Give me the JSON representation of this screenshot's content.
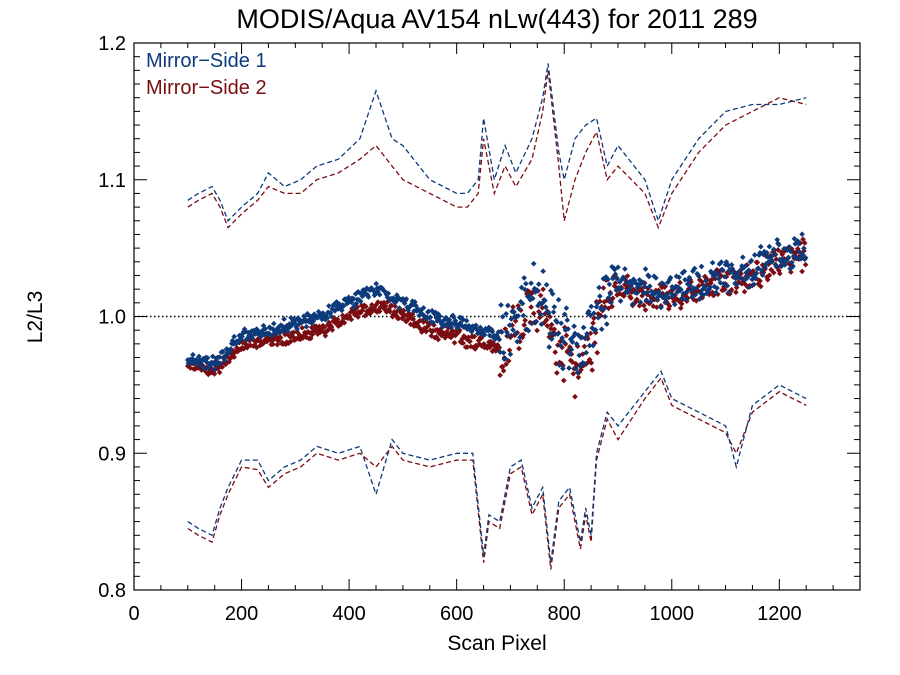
{
  "chart_data": {
    "type": "scatter",
    "title": "MODIS/Aqua AV154 nLw(443) for 2011 289",
    "xlabel": "Scan Pixel",
    "ylabel": "L2/L3",
    "xlim": [
      0,
      1350
    ],
    "ylim": [
      0.8,
      1.2
    ],
    "x_ticks": [
      0,
      200,
      400,
      600,
      800,
      1000,
      1200
    ],
    "y_ticks": [
      0.8,
      0.9,
      1.0,
      1.1,
      1.2
    ],
    "x_tick_labels": [
      "0",
      "200",
      "400",
      "600",
      "800",
      "1000",
      "1200"
    ],
    "y_tick_labels": [
      "0.8",
      "0.9",
      "1.0",
      "1.1",
      "1.2"
    ],
    "reference_line": {
      "y": 1.0,
      "style": "dotted",
      "color": "#000000"
    },
    "legend": {
      "placement": "top-left"
    },
    "series": [
      {
        "name": "Mirror−Side 1",
        "color": "#0d3a7a",
        "mean": {
          "x": [
            100,
            150,
            200,
            250,
            300,
            350,
            400,
            430,
            460,
            500,
            550,
            600,
            650,
            680,
            700,
            730,
            760,
            780,
            800,
            820,
            840,
            860,
            880,
            900,
            950,
            1000,
            1050,
            1100,
            1150,
            1200,
            1250
          ],
          "y": [
            0.97,
            0.965,
            0.985,
            0.99,
            0.995,
            1.0,
            1.01,
            1.016,
            1.02,
            1.01,
            1.0,
            0.995,
            0.99,
            0.985,
            0.99,
            1.01,
            1.02,
            0.99,
            0.985,
            0.975,
            0.98,
            1.0,
            1.02,
            1.025,
            1.02,
            1.02,
            1.025,
            1.03,
            1.035,
            1.045,
            1.05
          ]
        },
        "upper": {
          "x": [
            100,
            120,
            145,
            160,
            175,
            200,
            230,
            250,
            280,
            310,
            340,
            380,
            420,
            450,
            480,
            500,
            550,
            600,
            620,
            640,
            650,
            670,
            690,
            710,
            740,
            760,
            770,
            790,
            800,
            820,
            840,
            860,
            880,
            900,
            950,
            975,
            1000,
            1050,
            1100,
            1150,
            1200,
            1250
          ],
          "y": [
            1.085,
            1.09,
            1.095,
            1.085,
            1.07,
            1.08,
            1.09,
            1.105,
            1.095,
            1.1,
            1.11,
            1.115,
            1.13,
            1.165,
            1.13,
            1.125,
            1.1,
            1.09,
            1.09,
            1.1,
            1.145,
            1.1,
            1.125,
            1.105,
            1.13,
            1.16,
            1.185,
            1.12,
            1.1,
            1.13,
            1.14,
            1.145,
            1.11,
            1.125,
            1.1,
            1.07,
            1.1,
            1.13,
            1.15,
            1.155,
            1.155,
            1.16
          ]
        },
        "lower": {
          "x": [
            100,
            120,
            145,
            160,
            175,
            200,
            230,
            250,
            280,
            310,
            340,
            380,
            420,
            450,
            480,
            500,
            550,
            600,
            630,
            650,
            660,
            680,
            700,
            720,
            740,
            760,
            775,
            790,
            810,
            830,
            840,
            850,
            860,
            880,
            900,
            950,
            980,
            1000,
            1050,
            1100,
            1120,
            1150,
            1200,
            1250
          ],
          "y": [
            0.85,
            0.845,
            0.84,
            0.86,
            0.875,
            0.895,
            0.895,
            0.88,
            0.89,
            0.895,
            0.905,
            0.9,
            0.905,
            0.87,
            0.91,
            0.9,
            0.895,
            0.9,
            0.9,
            0.825,
            0.855,
            0.85,
            0.89,
            0.895,
            0.86,
            0.875,
            0.82,
            0.865,
            0.875,
            0.835,
            0.86,
            0.84,
            0.9,
            0.93,
            0.92,
            0.945,
            0.96,
            0.94,
            0.93,
            0.92,
            0.89,
            0.935,
            0.95,
            0.94
          ]
        }
      },
      {
        "name": "Mirror−Side 2",
        "color": "#7a0d12",
        "mean": {
          "x": [
            100,
            150,
            200,
            250,
            300,
            350,
            400,
            430,
            460,
            500,
            550,
            600,
            650,
            680,
            700,
            730,
            760,
            780,
            800,
            820,
            840,
            860,
            880,
            900,
            950,
            1000,
            1050,
            1100,
            1150,
            1200,
            1250
          ],
          "y": [
            0.965,
            0.96,
            0.98,
            0.983,
            0.985,
            0.99,
            1.0,
            1.005,
            1.008,
            1.0,
            0.99,
            0.985,
            0.98,
            0.975,
            0.98,
            1.0,
            1.015,
            0.98,
            0.97,
            0.96,
            0.97,
            0.995,
            1.015,
            1.02,
            1.015,
            1.015,
            1.02,
            1.025,
            1.03,
            1.04,
            1.045
          ]
        },
        "upper": {
          "x": [
            100,
            120,
            145,
            160,
            175,
            200,
            230,
            250,
            280,
            310,
            340,
            380,
            420,
            450,
            480,
            500,
            550,
            600,
            620,
            640,
            650,
            670,
            690,
            710,
            740,
            760,
            770,
            790,
            800,
            820,
            840,
            860,
            880,
            900,
            950,
            975,
            1000,
            1050,
            1100,
            1150,
            1200,
            1250
          ],
          "y": [
            1.08,
            1.085,
            1.09,
            1.08,
            1.065,
            1.075,
            1.085,
            1.095,
            1.09,
            1.09,
            1.1,
            1.105,
            1.115,
            1.125,
            1.11,
            1.1,
            1.09,
            1.08,
            1.08,
            1.09,
            1.13,
            1.09,
            1.11,
            1.095,
            1.115,
            1.15,
            1.18,
            1.11,
            1.07,
            1.1,
            1.12,
            1.135,
            1.1,
            1.11,
            1.09,
            1.065,
            1.09,
            1.12,
            1.14,
            1.15,
            1.16,
            1.155
          ]
        },
        "lower": {
          "x": [
            100,
            120,
            145,
            160,
            175,
            200,
            230,
            250,
            280,
            310,
            340,
            380,
            420,
            450,
            480,
            500,
            550,
            600,
            630,
            650,
            660,
            680,
            700,
            720,
            740,
            760,
            775,
            790,
            810,
            830,
            840,
            850,
            860,
            880,
            900,
            950,
            980,
            1000,
            1050,
            1100,
            1120,
            1150,
            1200,
            1250
          ],
          "y": [
            0.845,
            0.84,
            0.835,
            0.855,
            0.87,
            0.89,
            0.888,
            0.875,
            0.885,
            0.89,
            0.9,
            0.895,
            0.9,
            0.89,
            0.905,
            0.895,
            0.89,
            0.895,
            0.895,
            0.82,
            0.85,
            0.845,
            0.885,
            0.89,
            0.855,
            0.87,
            0.815,
            0.86,
            0.87,
            0.83,
            0.855,
            0.835,
            0.895,
            0.925,
            0.91,
            0.94,
            0.955,
            0.935,
            0.925,
            0.915,
            0.9,
            0.93,
            0.945,
            0.935
          ]
        }
      }
    ]
  }
}
